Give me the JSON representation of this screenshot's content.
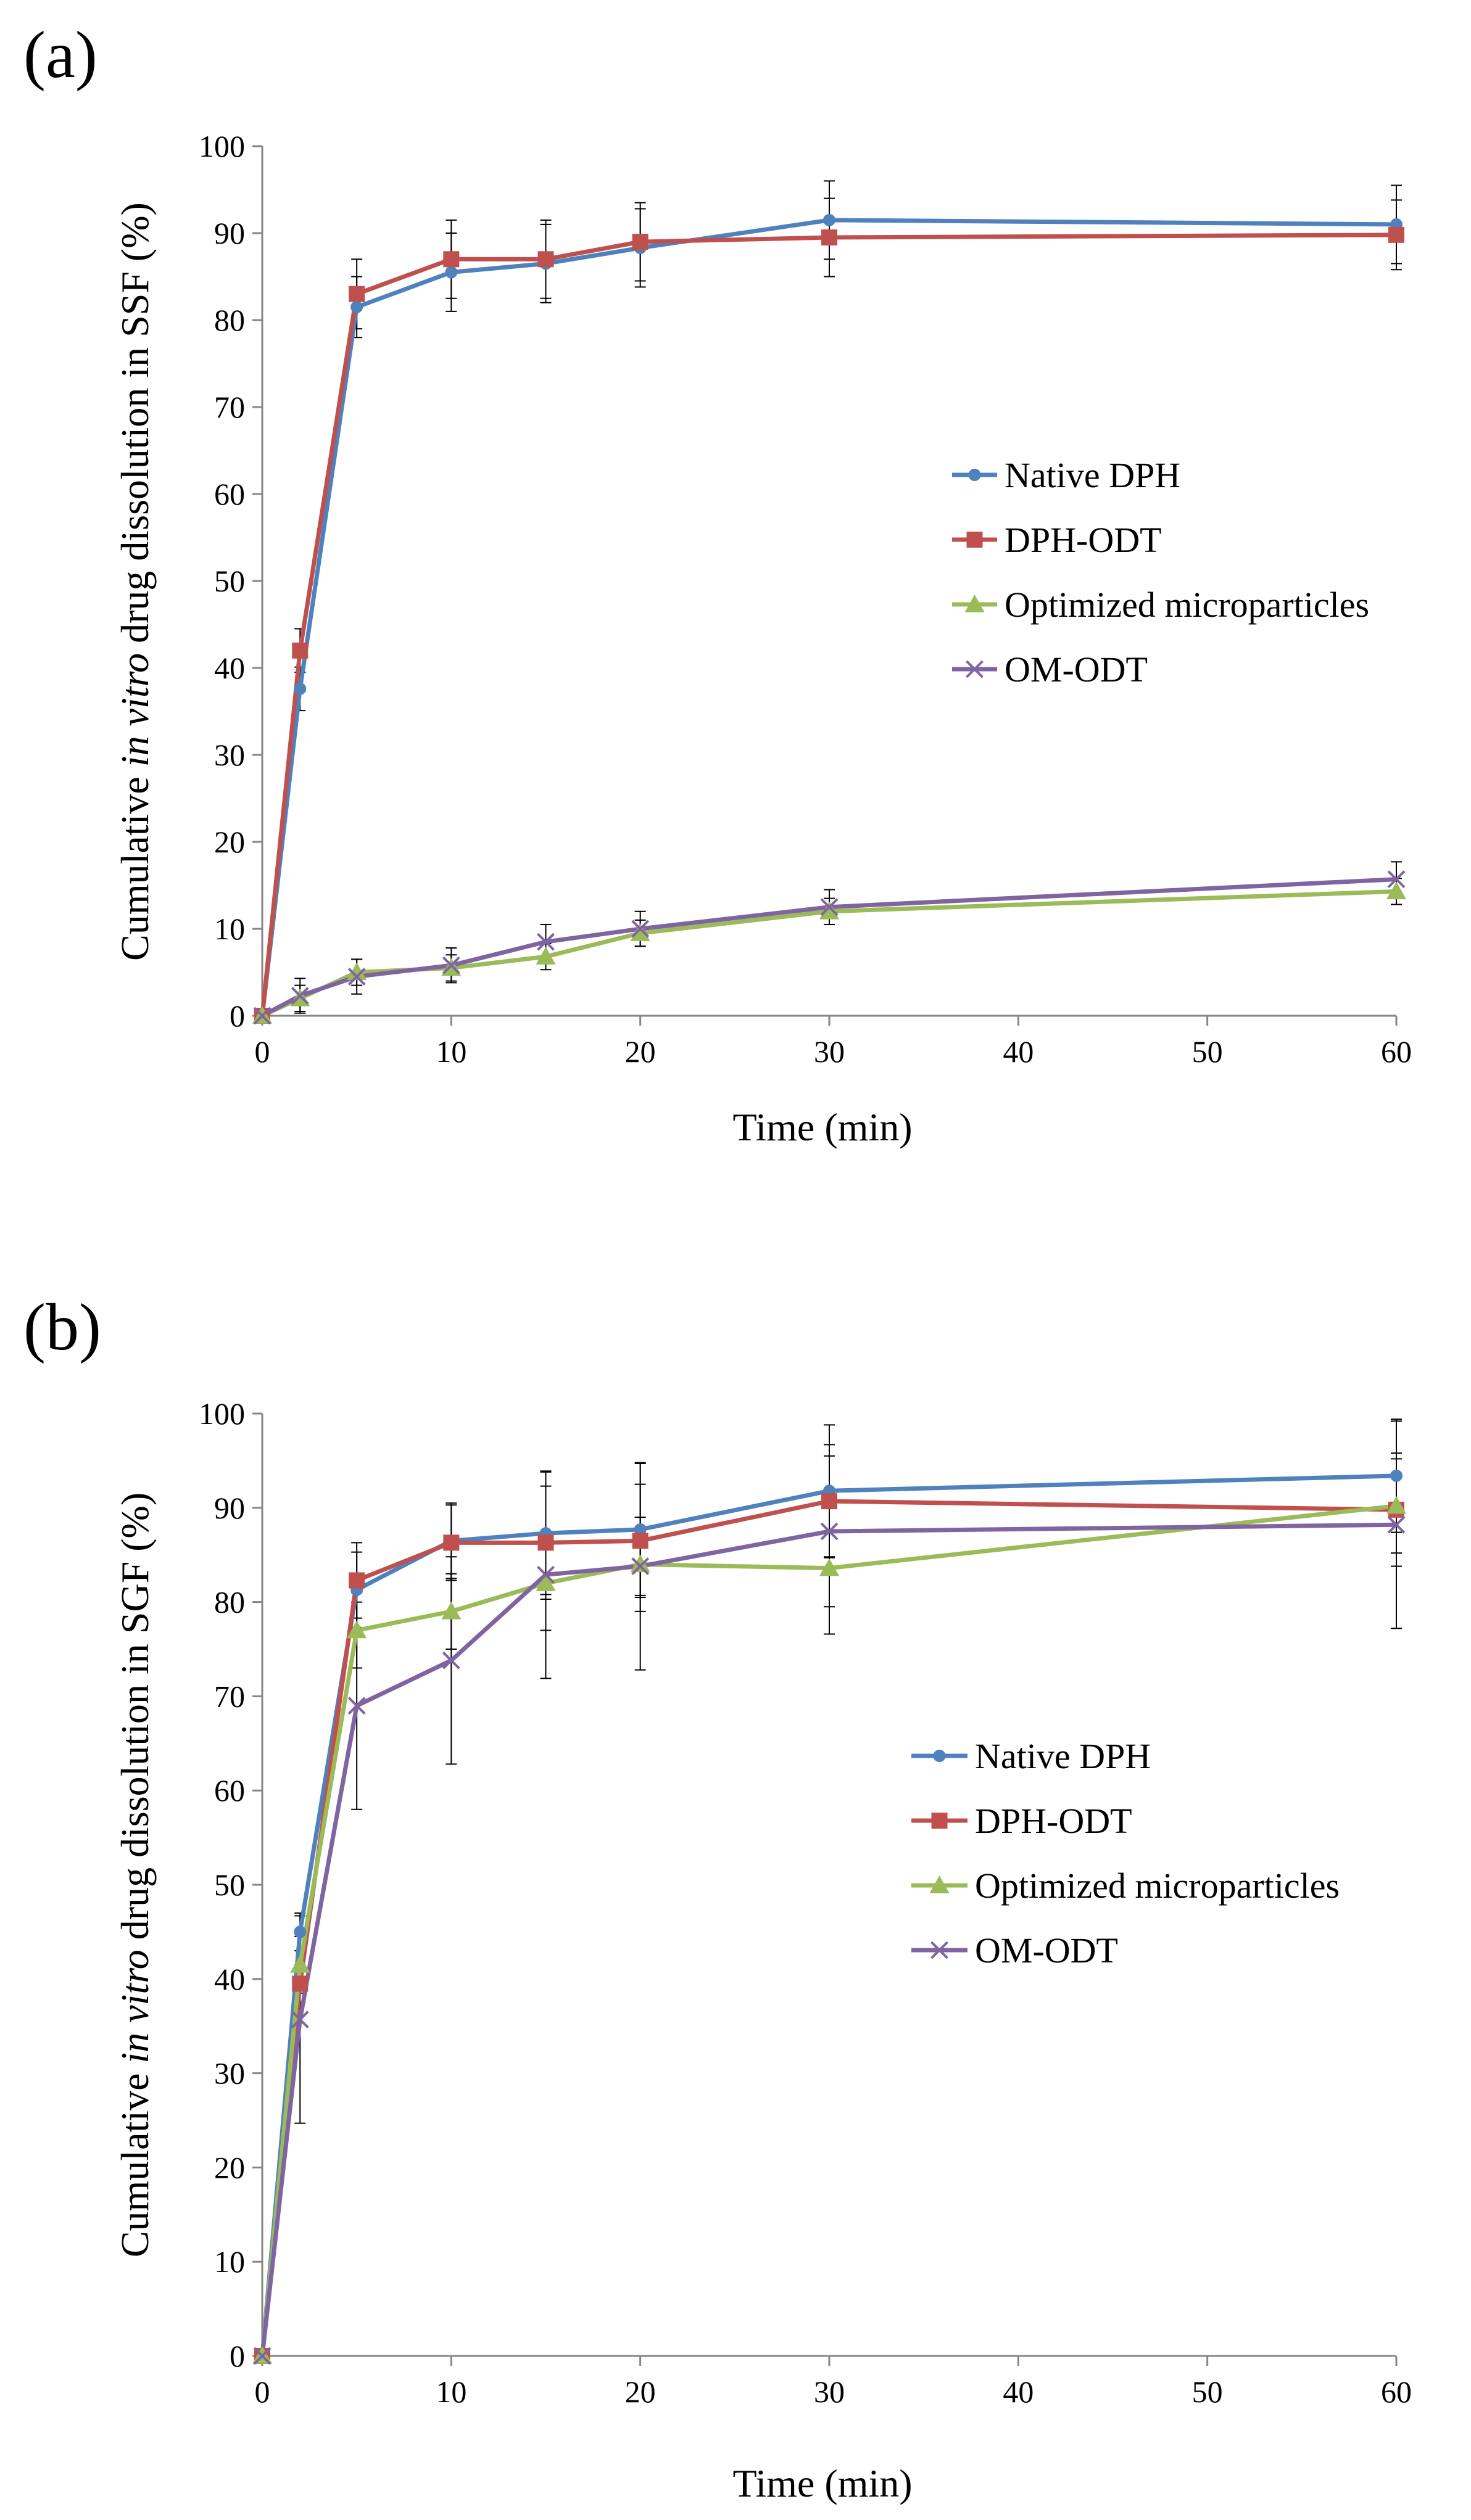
{
  "chart_data": [
    {
      "panel_label": "(a)",
      "type": "line",
      "xlabel": "Time (min)",
      "ylabel": {
        "pre": "Cumulative ",
        "italic": "in vitro",
        "post": " drug dissolution in SSF (%)"
      },
      "xlim": [
        0,
        60
      ],
      "ylim": [
        0,
        100
      ],
      "x_ticks": [
        0,
        10,
        20,
        30,
        40,
        50,
        60
      ],
      "y_ticks": [
        0,
        10,
        20,
        30,
        40,
        50,
        60,
        70,
        80,
        90,
        100
      ],
      "legend_position": "center-right",
      "error_bars": true,
      "grid": false,
      "series": [
        {
          "name": "Native DPH",
          "color": "#4F81BD",
          "marker": "circle",
          "points": [
            {
              "x": 0,
              "y": 0
            },
            {
              "x": 2,
              "y": 37.6
            },
            {
              "x": 5,
              "y": 81.5
            },
            {
              "x": 10,
              "y": 85.5
            },
            {
              "x": 15,
              "y": 86.5
            },
            {
              "x": 20,
              "y": 88.3
            },
            {
              "x": 30,
              "y": 91.5
            },
            {
              "x": 60,
              "y": 91.0
            }
          ],
          "err": [
            0,
            2.5,
            3.5,
            4.5,
            4.5,
            4.5,
            4.5,
            4.5
          ]
        },
        {
          "name": "DPH-ODT",
          "color": "#C0504D",
          "marker": "square",
          "points": [
            {
              "x": 0,
              "y": 0
            },
            {
              "x": 2,
              "y": 42.0
            },
            {
              "x": 5,
              "y": 83.0
            },
            {
              "x": 10,
              "y": 87.0
            },
            {
              "x": 15,
              "y": 87.0
            },
            {
              "x": 20,
              "y": 89.0
            },
            {
              "x": 30,
              "y": 89.5
            },
            {
              "x": 60,
              "y": 89.8
            }
          ],
          "err": [
            0,
            2.5,
            4.0,
            4.5,
            4.5,
            4.5,
            4.5,
            4.0
          ]
        },
        {
          "name": "Optimized microparticles",
          "color": "#9BBB59",
          "marker": "triangle",
          "points": [
            {
              "x": 0,
              "y": 0
            },
            {
              "x": 2,
              "y": 2.0
            },
            {
              "x": 5,
              "y": 5.0
            },
            {
              "x": 10,
              "y": 5.5
            },
            {
              "x": 15,
              "y": 6.8
            },
            {
              "x": 20,
              "y": 9.5
            },
            {
              "x": 30,
              "y": 12.0
            },
            {
              "x": 60,
              "y": 14.3
            }
          ],
          "err": [
            0,
            1.5,
            1.5,
            1.5,
            1.5,
            1.5,
            1.5,
            1.5
          ]
        },
        {
          "name": "OM-ODT",
          "color": "#8064A2",
          "marker": "x",
          "points": [
            {
              "x": 0,
              "y": 0
            },
            {
              "x": 2,
              "y": 2.3
            },
            {
              "x": 5,
              "y": 4.5
            },
            {
              "x": 10,
              "y": 5.8
            },
            {
              "x": 15,
              "y": 8.5
            },
            {
              "x": 20,
              "y": 10.0
            },
            {
              "x": 30,
              "y": 12.5
            },
            {
              "x": 60,
              "y": 15.7
            }
          ],
          "err": [
            0,
            2.0,
            2.0,
            2.0,
            2.0,
            2.0,
            2.0,
            2.0
          ]
        }
      ]
    },
    {
      "panel_label": "(b)",
      "type": "line",
      "xlabel": "Time (min)",
      "ylabel": {
        "pre": "Cumulative ",
        "italic": "in vitro",
        "post": " drug dissolution in SGF (%)"
      },
      "xlim": [
        0,
        60
      ],
      "ylim": [
        0,
        100
      ],
      "x_ticks": [
        0,
        10,
        20,
        30,
        40,
        50,
        60
      ],
      "y_ticks": [
        0,
        10,
        20,
        30,
        40,
        50,
        60,
        70,
        80,
        90,
        100
      ],
      "legend_position": "center-right",
      "error_bars": true,
      "grid": false,
      "series": [
        {
          "name": "Native DPH",
          "color": "#4F81BD",
          "marker": "circle",
          "points": [
            {
              "x": 0,
              "y": 0
            },
            {
              "x": 2,
              "y": 45.0
            },
            {
              "x": 5,
              "y": 81.3
            },
            {
              "x": 10,
              "y": 86.5
            },
            {
              "x": 15,
              "y": 87.3
            },
            {
              "x": 20,
              "y": 87.7
            },
            {
              "x": 30,
              "y": 91.8
            },
            {
              "x": 60,
              "y": 93.4
            }
          ],
          "err": [
            0,
            2.0,
            4.0,
            4.0,
            6.5,
            7.0,
            7.0,
            6.0
          ]
        },
        {
          "name": "DPH-ODT",
          "color": "#C0504D",
          "marker": "square",
          "points": [
            {
              "x": 0,
              "y": 0
            },
            {
              "x": 2,
              "y": 39.5
            },
            {
              "x": 5,
              "y": 82.3
            },
            {
              "x": 10,
              "y": 86.3
            },
            {
              "x": 15,
              "y": 86.3
            },
            {
              "x": 20,
              "y": 86.5
            },
            {
              "x": 30,
              "y": 90.7
            },
            {
              "x": 60,
              "y": 89.8
            }
          ],
          "err": [
            0,
            2.0,
            4.0,
            4.0,
            6.0,
            6.0,
            6.0,
            6.0
          ]
        },
        {
          "name": "Optimized microparticles",
          "color": "#9BBB59",
          "marker": "triangle",
          "points": [
            {
              "x": 0,
              "y": 0
            },
            {
              "x": 2,
              "y": 41.5
            },
            {
              "x": 5,
              "y": 77.0
            },
            {
              "x": 10,
              "y": 79.0
            },
            {
              "x": 15,
              "y": 82.0
            },
            {
              "x": 20,
              "y": 84.0
            },
            {
              "x": 30,
              "y": 83.6
            },
            {
              "x": 60,
              "y": 90.2
            }
          ],
          "err": [
            0,
            3.0,
            4.0,
            4.0,
            5.0,
            5.0,
            7.0,
            5.0
          ]
        },
        {
          "name": "OM-ODT",
          "color": "#8064A2",
          "marker": "x",
          "points": [
            {
              "x": 0,
              "y": 0
            },
            {
              "x": 2,
              "y": 35.7
            },
            {
              "x": 5,
              "y": 69.0
            },
            {
              "x": 10,
              "y": 73.8
            },
            {
              "x": 15,
              "y": 82.9
            },
            {
              "x": 20,
              "y": 83.8
            },
            {
              "x": 30,
              "y": 87.5
            },
            {
              "x": 60,
              "y": 88.2
            }
          ],
          "err": [
            0,
            11.0,
            11.0,
            11.0,
            11.0,
            11.0,
            8.0,
            11.0
          ]
        }
      ]
    }
  ]
}
